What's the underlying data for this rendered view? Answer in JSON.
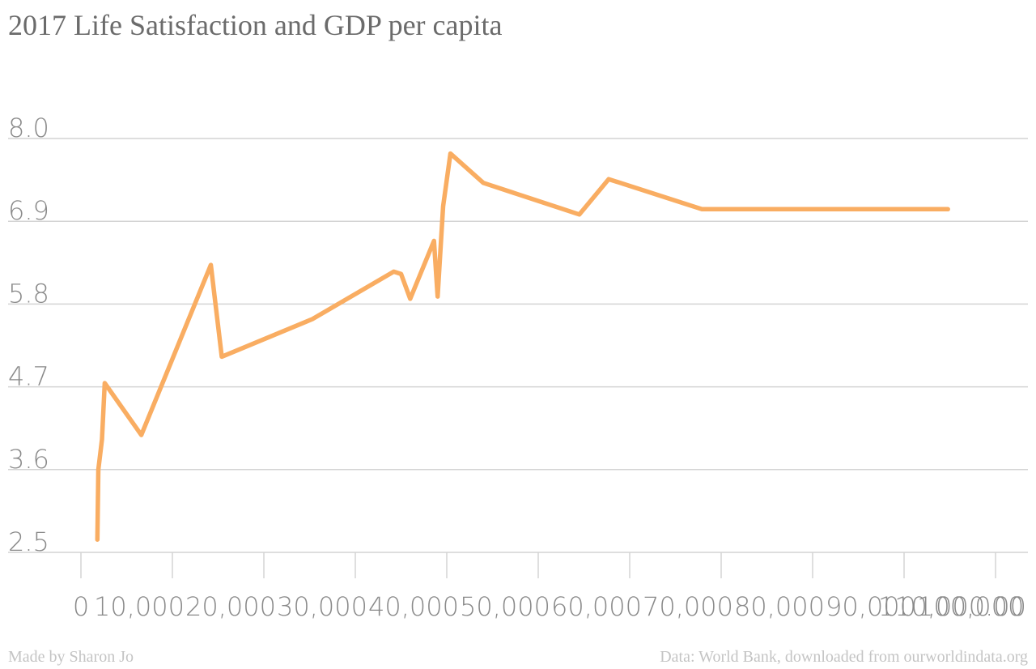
{
  "title": "2017 Life Satisfaction and GDP per capita",
  "footer": {
    "credit": "Made by Sharon Jo",
    "source": "Data: World Bank, downloaded from ourworldindata.org"
  },
  "colors": {
    "line": "#f9ad62",
    "grid": "#d4d4d4",
    "tick_text": "#8a8a8a",
    "title": "#6b6b6b",
    "footer": "#c4c4c4"
  },
  "chart_data": {
    "type": "line",
    "title": "2017 Life Satisfaction and GDP per capita",
    "xlabel": "",
    "ylabel": "",
    "xlim": [
      0,
      100000
    ],
    "ylim": [
      2.5,
      8.0
    ],
    "grid": true,
    "yticks": [
      "2.5",
      "3.6",
      "4.7",
      "5.8",
      "6.9",
      "8.0"
    ],
    "ytick_values": [
      2.5,
      3.6,
      4.7,
      5.8,
      6.9,
      8.0
    ],
    "xticks": [
      "0",
      "10,000",
      "20,000",
      "30,000",
      "40,000",
      "50,000",
      "60,000",
      "70,000",
      "80,000",
      "90,000",
      "100,000",
      "110,000.00"
    ],
    "xtick_values": [
      0,
      10000,
      20000,
      30000,
      40000,
      50000,
      60000,
      70000,
      80000,
      90000,
      100000,
      110000
    ],
    "series": [
      {
        "points": [
          [
            1800,
            2.67
          ],
          [
            1900,
            3.6
          ],
          [
            2300,
            4.0
          ],
          [
            2600,
            4.75
          ],
          [
            6600,
            4.06
          ],
          [
            14200,
            6.32
          ],
          [
            15400,
            5.1
          ],
          [
            25300,
            5.6
          ],
          [
            34200,
            6.23
          ],
          [
            35000,
            6.2
          ],
          [
            36000,
            5.87
          ],
          [
            38600,
            6.64
          ],
          [
            39000,
            5.9
          ],
          [
            39600,
            7.1
          ],
          [
            40400,
            7.8
          ],
          [
            44000,
            7.41
          ],
          [
            54500,
            6.99
          ],
          [
            57700,
            7.46
          ],
          [
            67900,
            7.06
          ],
          [
            94800,
            7.06
          ]
        ]
      }
    ]
  }
}
